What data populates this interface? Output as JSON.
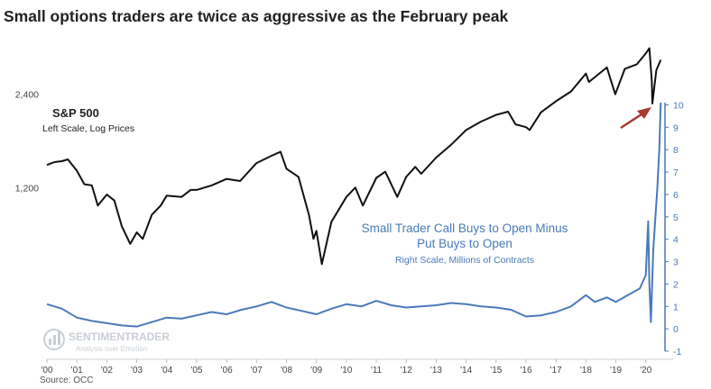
{
  "chart_data": {
    "type": "line",
    "title": "Small options traders are twice as aggressive  as the February peak",
    "source": "Source: OCC",
    "watermark": {
      "line1": "SENTIMENTRADER",
      "line2": "Analysis over Emotion"
    },
    "x_ticks": [
      "'00",
      "'01",
      "'02",
      "'03",
      "'04",
      "'05",
      "'06",
      "'07",
      "'08",
      "'09",
      "'10",
      "'11",
      "'12",
      "'13",
      "'14",
      "'15",
      "'16",
      "'17",
      "'18",
      "'19",
      "'20"
    ],
    "x_range": [
      2000.0,
      2020.55
    ],
    "left_axis": {
      "scale": "log",
      "ticks": [
        1200,
        2400
      ],
      "tick_labels": [
        "1,200",
        "2,400"
      ],
      "range": [
        650,
        3700
      ]
    },
    "right_axis": {
      "scale": "linear",
      "ticks": [
        -1,
        0,
        1,
        2,
        3,
        4,
        5,
        6,
        7,
        8,
        9,
        10
      ],
      "range": [
        -1,
        10.1
      ]
    },
    "series": [
      {
        "name": "S&P 500",
        "subtitle": "Left Scale, Log Prices",
        "axis": "left",
        "color": "#111111",
        "points": [
          [
            2000.0,
            1420
          ],
          [
            2000.25,
            1450
          ],
          [
            2000.5,
            1460
          ],
          [
            2000.7,
            1480
          ],
          [
            2001.0,
            1360
          ],
          [
            2001.25,
            1230
          ],
          [
            2001.5,
            1220
          ],
          [
            2001.7,
            1050
          ],
          [
            2002.0,
            1140
          ],
          [
            2002.25,
            1090
          ],
          [
            2002.5,
            900
          ],
          [
            2002.78,
            790
          ],
          [
            2003.0,
            860
          ],
          [
            2003.2,
            820
          ],
          [
            2003.5,
            980
          ],
          [
            2003.8,
            1050
          ],
          [
            2004.0,
            1130
          ],
          [
            2004.5,
            1120
          ],
          [
            2004.8,
            1180
          ],
          [
            2005.0,
            1180
          ],
          [
            2005.5,
            1220
          ],
          [
            2006.0,
            1280
          ],
          [
            2006.45,
            1260
          ],
          [
            2007.0,
            1440
          ],
          [
            2007.5,
            1520
          ],
          [
            2007.8,
            1565
          ],
          [
            2008.0,
            1380
          ],
          [
            2008.4,
            1300
          ],
          [
            2008.75,
            980
          ],
          [
            2008.9,
            820
          ],
          [
            2009.0,
            870
          ],
          [
            2009.18,
            680
          ],
          [
            2009.5,
            930
          ],
          [
            2010.0,
            1120
          ],
          [
            2010.3,
            1200
          ],
          [
            2010.55,
            1050
          ],
          [
            2011.0,
            1290
          ],
          [
            2011.3,
            1350
          ],
          [
            2011.7,
            1120
          ],
          [
            2012.0,
            1300
          ],
          [
            2012.3,
            1400
          ],
          [
            2012.5,
            1330
          ],
          [
            2013.0,
            1500
          ],
          [
            2013.5,
            1650
          ],
          [
            2014.0,
            1840
          ],
          [
            2014.5,
            1960
          ],
          [
            2015.0,
            2060
          ],
          [
            2015.4,
            2110
          ],
          [
            2015.65,
            1920
          ],
          [
            2016.0,
            1880
          ],
          [
            2016.12,
            1840
          ],
          [
            2016.5,
            2100
          ],
          [
            2017.0,
            2280
          ],
          [
            2017.5,
            2450
          ],
          [
            2018.0,
            2800
          ],
          [
            2018.1,
            2630
          ],
          [
            2018.7,
            2930
          ],
          [
            2018.98,
            2400
          ],
          [
            2019.3,
            2900
          ],
          [
            2019.7,
            3000
          ],
          [
            2020.0,
            3250
          ],
          [
            2020.12,
            3380
          ],
          [
            2020.2,
            2650
          ],
          [
            2020.22,
            2240
          ],
          [
            2020.35,
            2870
          ],
          [
            2020.5,
            3100
          ]
        ]
      },
      {
        "name": "Small Trader Call Buys to Open Minus Put Buys to Open",
        "label_line1": "Small Trader Call Buys to Open Minus",
        "label_line2": "Put Buys to Open",
        "subtitle": "Right Scale, Millions of Contracts",
        "axis": "right",
        "color": "#4a7ab8",
        "points": [
          [
            2000.0,
            1.1
          ],
          [
            2000.5,
            0.9
          ],
          [
            2001.0,
            0.5
          ],
          [
            2001.5,
            0.35
          ],
          [
            2002.0,
            0.25
          ],
          [
            2002.5,
            0.15
          ],
          [
            2003.0,
            0.1
          ],
          [
            2003.5,
            0.3
          ],
          [
            2004.0,
            0.5
          ],
          [
            2004.5,
            0.45
          ],
          [
            2005.0,
            0.6
          ],
          [
            2005.5,
            0.75
          ],
          [
            2006.0,
            0.65
          ],
          [
            2006.5,
            0.85
          ],
          [
            2007.0,
            1.0
          ],
          [
            2007.5,
            1.2
          ],
          [
            2008.0,
            0.95
          ],
          [
            2008.5,
            0.8
          ],
          [
            2009.0,
            0.65
          ],
          [
            2009.5,
            0.9
          ],
          [
            2010.0,
            1.1
          ],
          [
            2010.5,
            1.0
          ],
          [
            2011.0,
            1.25
          ],
          [
            2011.5,
            1.05
          ],
          [
            2012.0,
            0.95
          ],
          [
            2012.5,
            1.0
          ],
          [
            2013.0,
            1.05
          ],
          [
            2013.5,
            1.15
          ],
          [
            2014.0,
            1.1
          ],
          [
            2014.5,
            1.0
          ],
          [
            2015.0,
            0.95
          ],
          [
            2015.5,
            0.85
          ],
          [
            2016.0,
            0.55
          ],
          [
            2016.5,
            0.6
          ],
          [
            2017.0,
            0.75
          ],
          [
            2017.5,
            1.0
          ],
          [
            2018.0,
            1.5
          ],
          [
            2018.3,
            1.2
          ],
          [
            2018.7,
            1.4
          ],
          [
            2019.0,
            1.2
          ],
          [
            2019.4,
            1.5
          ],
          [
            2019.8,
            1.8
          ],
          [
            2020.0,
            2.4
          ],
          [
            2020.08,
            4.8
          ],
          [
            2020.12,
            2.0
          ],
          [
            2020.17,
            0.3
          ],
          [
            2020.25,
            3.5
          ],
          [
            2020.32,
            5.0
          ],
          [
            2020.38,
            6.2
          ],
          [
            2020.45,
            8.0
          ],
          [
            2020.5,
            10.1
          ]
        ]
      }
    ],
    "arrow_color": "#a83a30"
  }
}
